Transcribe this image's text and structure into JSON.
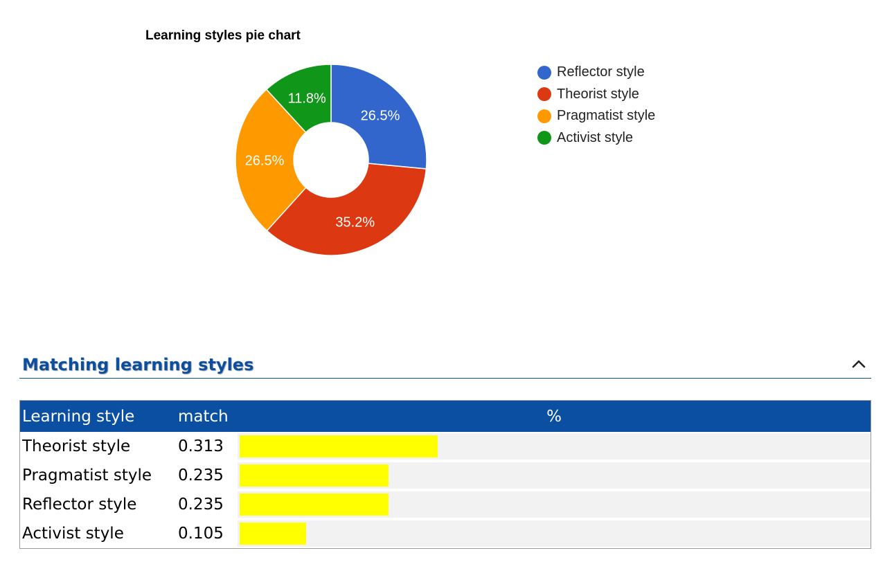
{
  "chart_data": {
    "type": "pie",
    "title": "Learning styles pie chart",
    "donut": true,
    "legend_position": "right",
    "series": [
      {
        "name": "Reflector style",
        "value": 26.5,
        "label": "26.5%",
        "color": "#3366cc"
      },
      {
        "name": "Theorist style",
        "value": 35.2,
        "label": "35.2%",
        "color": "#dc3912"
      },
      {
        "name": "Pragmatist style",
        "value": 26.5,
        "label": "26.5%",
        "color": "#ff9900"
      },
      {
        "name": "Activist style",
        "value": 11.8,
        "label": "11.8%",
        "color": "#109618"
      }
    ]
  },
  "section": {
    "title": "Matching learning styles",
    "collapse_icon": "chevron-up-icon"
  },
  "table": {
    "headers": {
      "style": "Learning style",
      "match": "match",
      "percent": "%"
    },
    "bar_scale_max": 1.0,
    "rows": [
      {
        "style": "Theorist style",
        "match": "0.313",
        "fraction": 0.313
      },
      {
        "style": "Pragmatist style",
        "match": "0.235",
        "fraction": 0.235
      },
      {
        "style": "Reflector style",
        "match": "0.235",
        "fraction": 0.235
      },
      {
        "style": "Activist style",
        "match": "0.105",
        "fraction": 0.105
      }
    ]
  },
  "colors": {
    "header_bg": "#0b4fa3",
    "bar": "#ffff00",
    "section_title": "#0b4f9e"
  }
}
